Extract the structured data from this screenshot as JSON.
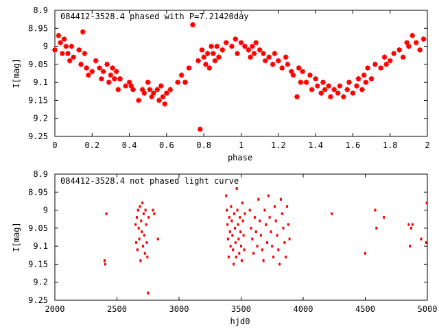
{
  "chart_data": [
    {
      "type": "scatter",
      "title": "084412-3528.4 phased with P=7.21420day",
      "xlabel": "phase",
      "ylabel": "I[mag]",
      "xlim": [
        0,
        2
      ],
      "ylim": [
        8.9,
        9.25
      ],
      "y_inverted": true,
      "x_ticks": [
        "0",
        "0.2",
        "0.4",
        "0.6",
        "0.8",
        "1",
        "1.2",
        "1.4",
        "1.6",
        "1.8",
        "2"
      ],
      "y_ticks": [
        "8.9",
        "8.95",
        "9",
        "9.05",
        "9.1",
        "9.15",
        "9.2",
        "9.25"
      ],
      "grid": false,
      "marker_color": "#ff0000",
      "series": [
        {
          "x": [
            0.0,
            0.02,
            0.03,
            0.04,
            0.05,
            0.06,
            0.07,
            0.08,
            0.09,
            0.1,
            0.13,
            0.14,
            0.15,
            0.16,
            0.17,
            0.18,
            0.2,
            0.22,
            0.24,
            0.25,
            0.26,
            0.28,
            0.29,
            0.3,
            0.31,
            0.32,
            0.33,
            0.34,
            0.35,
            0.38,
            0.4,
            0.41,
            0.42,
            0.45,
            0.47,
            0.48,
            0.5,
            0.51,
            0.52,
            0.53,
            0.55,
            0.56,
            0.57,
            0.58,
            0.59,
            0.6,
            0.62,
            0.66,
            0.68,
            0.7,
            0.72,
            0.74,
            0.77,
            0.78,
            0.79,
            0.8,
            0.81,
            0.82,
            0.83,
            0.84,
            0.85,
            0.86,
            0.87,
            0.88,
            0.9,
            0.92,
            0.95,
            0.97,
            0.98,
            1.0,
            1.02,
            1.04,
            1.05,
            1.06,
            1.07,
            1.08,
            1.1,
            1.12,
            1.13,
            1.15,
            1.17,
            1.18,
            1.2,
            1.22,
            1.24,
            1.25,
            1.27,
            1.28,
            1.3,
            1.31,
            1.32,
            1.33,
            1.35,
            1.37,
            1.38,
            1.4,
            1.41,
            1.43,
            1.44,
            1.45,
            1.47,
            1.48,
            1.5,
            1.52,
            1.53,
            1.55,
            1.57,
            1.58,
            1.6,
            1.62,
            1.63,
            1.65,
            1.66,
            1.67,
            1.68,
            1.7,
            1.72,
            1.75,
            1.77,
            1.78,
            1.8,
            1.82,
            1.85,
            1.87,
            1.89,
            1.9,
            1.92,
            1.94,
            1.96,
            1.98
          ],
          "y": [
            9.01,
            8.97,
            8.99,
            9.02,
            8.98,
            9.0,
            9.02,
            9.04,
            9.0,
            9.03,
            9.01,
            9.05,
            8.96,
            9.02,
            9.06,
            9.08,
            9.07,
            9.04,
            9.06,
            9.09,
            9.07,
            9.05,
            9.1,
            9.08,
            9.06,
            9.09,
            9.07,
            9.12,
            9.09,
            9.11,
            9.1,
            9.11,
            9.12,
            9.15,
            9.12,
            9.13,
            9.1,
            9.12,
            9.14,
            9.13,
            9.12,
            9.15,
            9.11,
            9.14,
            9.16,
            9.13,
            9.12,
            9.1,
            9.08,
            9.1,
            9.06,
            8.94,
            9.04,
            9.23,
            9.01,
            9.03,
            9.05,
            9.02,
            9.06,
            9.0,
            9.02,
            9.04,
            9.0,
            9.03,
            9.01,
            8.99,
            9.0,
            8.98,
            9.02,
            8.99,
            9.0,
            9.01,
            9.03,
            9.0,
            9.02,
            8.99,
            9.01,
            9.02,
            9.04,
            9.03,
            9.05,
            9.02,
            9.04,
            9.06,
            9.03,
            9.05,
            9.07,
            9.08,
            9.14,
            9.06,
            9.1,
            9.07,
            9.1,
            9.08,
            9.12,
            9.09,
            9.11,
            9.13,
            9.1,
            9.12,
            9.11,
            9.14,
            9.12,
            9.13,
            9.11,
            9.14,
            9.12,
            9.1,
            9.13,
            9.11,
            9.09,
            9.12,
            9.08,
            9.1,
            9.06,
            9.09,
            9.05,
            9.06,
            9.03,
            9.05,
            9.04,
            9.02,
            9.01,
            9.03,
            8.99,
            9.0,
            8.97,
            8.99,
            9.01,
            8.98
          ]
        }
      ]
    },
    {
      "type": "scatter",
      "title": "084412-3528.4 not phased light curve",
      "xlabel": "hjd0",
      "ylabel": "I[mag]",
      "xlim": [
        2000,
        5000
      ],
      "ylim": [
        8.9,
        9.25
      ],
      "y_inverted": true,
      "x_ticks": [
        "2000",
        "2500",
        "3000",
        "3500",
        "4000",
        "4500",
        "5000"
      ],
      "y_ticks": [
        "8.9",
        "8.95",
        "9",
        "9.05",
        "9.1",
        "9.15",
        "9.2",
        "9.25"
      ],
      "grid": false,
      "marker_color": "#ff0000",
      "series": [
        {
          "x": [
            2400,
            2405,
            2415,
            2650,
            2655,
            2660,
            2665,
            2670,
            2675,
            2680,
            2685,
            2690,
            2695,
            2700,
            2705,
            2710,
            2715,
            2720,
            2725,
            2730,
            2735,
            2740,
            2745,
            2750,
            2755,
            2790,
            2800,
            2830,
            3380,
            3385,
            3390,
            3395,
            3400,
            3405,
            3410,
            3415,
            3420,
            3425,
            3430,
            3435,
            3440,
            3445,
            3450,
            3455,
            3460,
            3465,
            3470,
            3475,
            3480,
            3485,
            3490,
            3495,
            3500,
            3505,
            3510,
            3515,
            3520,
            3525,
            3530,
            3570,
            3580,
            3590,
            3600,
            3610,
            3620,
            3630,
            3640,
            3650,
            3660,
            3670,
            3680,
            3690,
            3700,
            3710,
            3720,
            3730,
            3740,
            3750,
            3760,
            3770,
            3780,
            3790,
            3800,
            3810,
            3820,
            3830,
            3840,
            3850,
            3860,
            3870,
            3880,
            3890,
            4230,
            4500,
            4580,
            4590,
            4650,
            4850,
            4860,
            4870,
            4880,
            4950,
            4990,
            4995
          ],
          "y": [
            9.14,
            9.15,
            9.01,
            9.04,
            9.09,
            9.02,
            9.11,
            9.0,
            9.05,
            9.08,
            8.99,
            9.14,
            9.03,
            9.06,
            8.98,
            9.1,
            9.01,
            9.07,
            9.12,
            9.0,
            9.04,
            9.09,
            9.13,
            9.23,
            9.02,
            9.0,
            9.01,
            9.08,
            8.96,
            9.0,
            9.04,
            9.08,
            9.13,
            9.02,
            9.06,
            9.1,
            8.99,
            9.03,
            9.07,
            9.11,
            9.15,
            9.01,
            9.05,
            9.09,
            9.13,
            8.94,
            9.0,
            9.04,
            9.08,
            9.12,
            9.02,
            9.06,
            9.1,
            9.14,
            8.98,
            9.03,
            9.07,
            9.11,
            9.01,
            9.0,
            9.05,
            9.08,
            9.12,
            9.02,
            9.06,
            9.1,
            8.97,
            9.03,
            9.07,
            9.11,
            9.14,
            9.0,
            9.04,
            9.09,
            8.96,
            9.02,
            9.06,
            9.1,
            9.13,
            8.99,
            9.03,
            9.07,
            9.11,
            9.15,
            8.97,
            9.01,
            9.05,
            9.09,
            9.13,
            8.99,
            9.04,
            9.08,
            9.01,
            9.12,
            9.0,
            9.05,
            9.02,
            9.04,
            9.1,
            9.05,
            9.04,
            9.08,
            9.09,
            8.98
          ]
        }
      ]
    }
  ]
}
